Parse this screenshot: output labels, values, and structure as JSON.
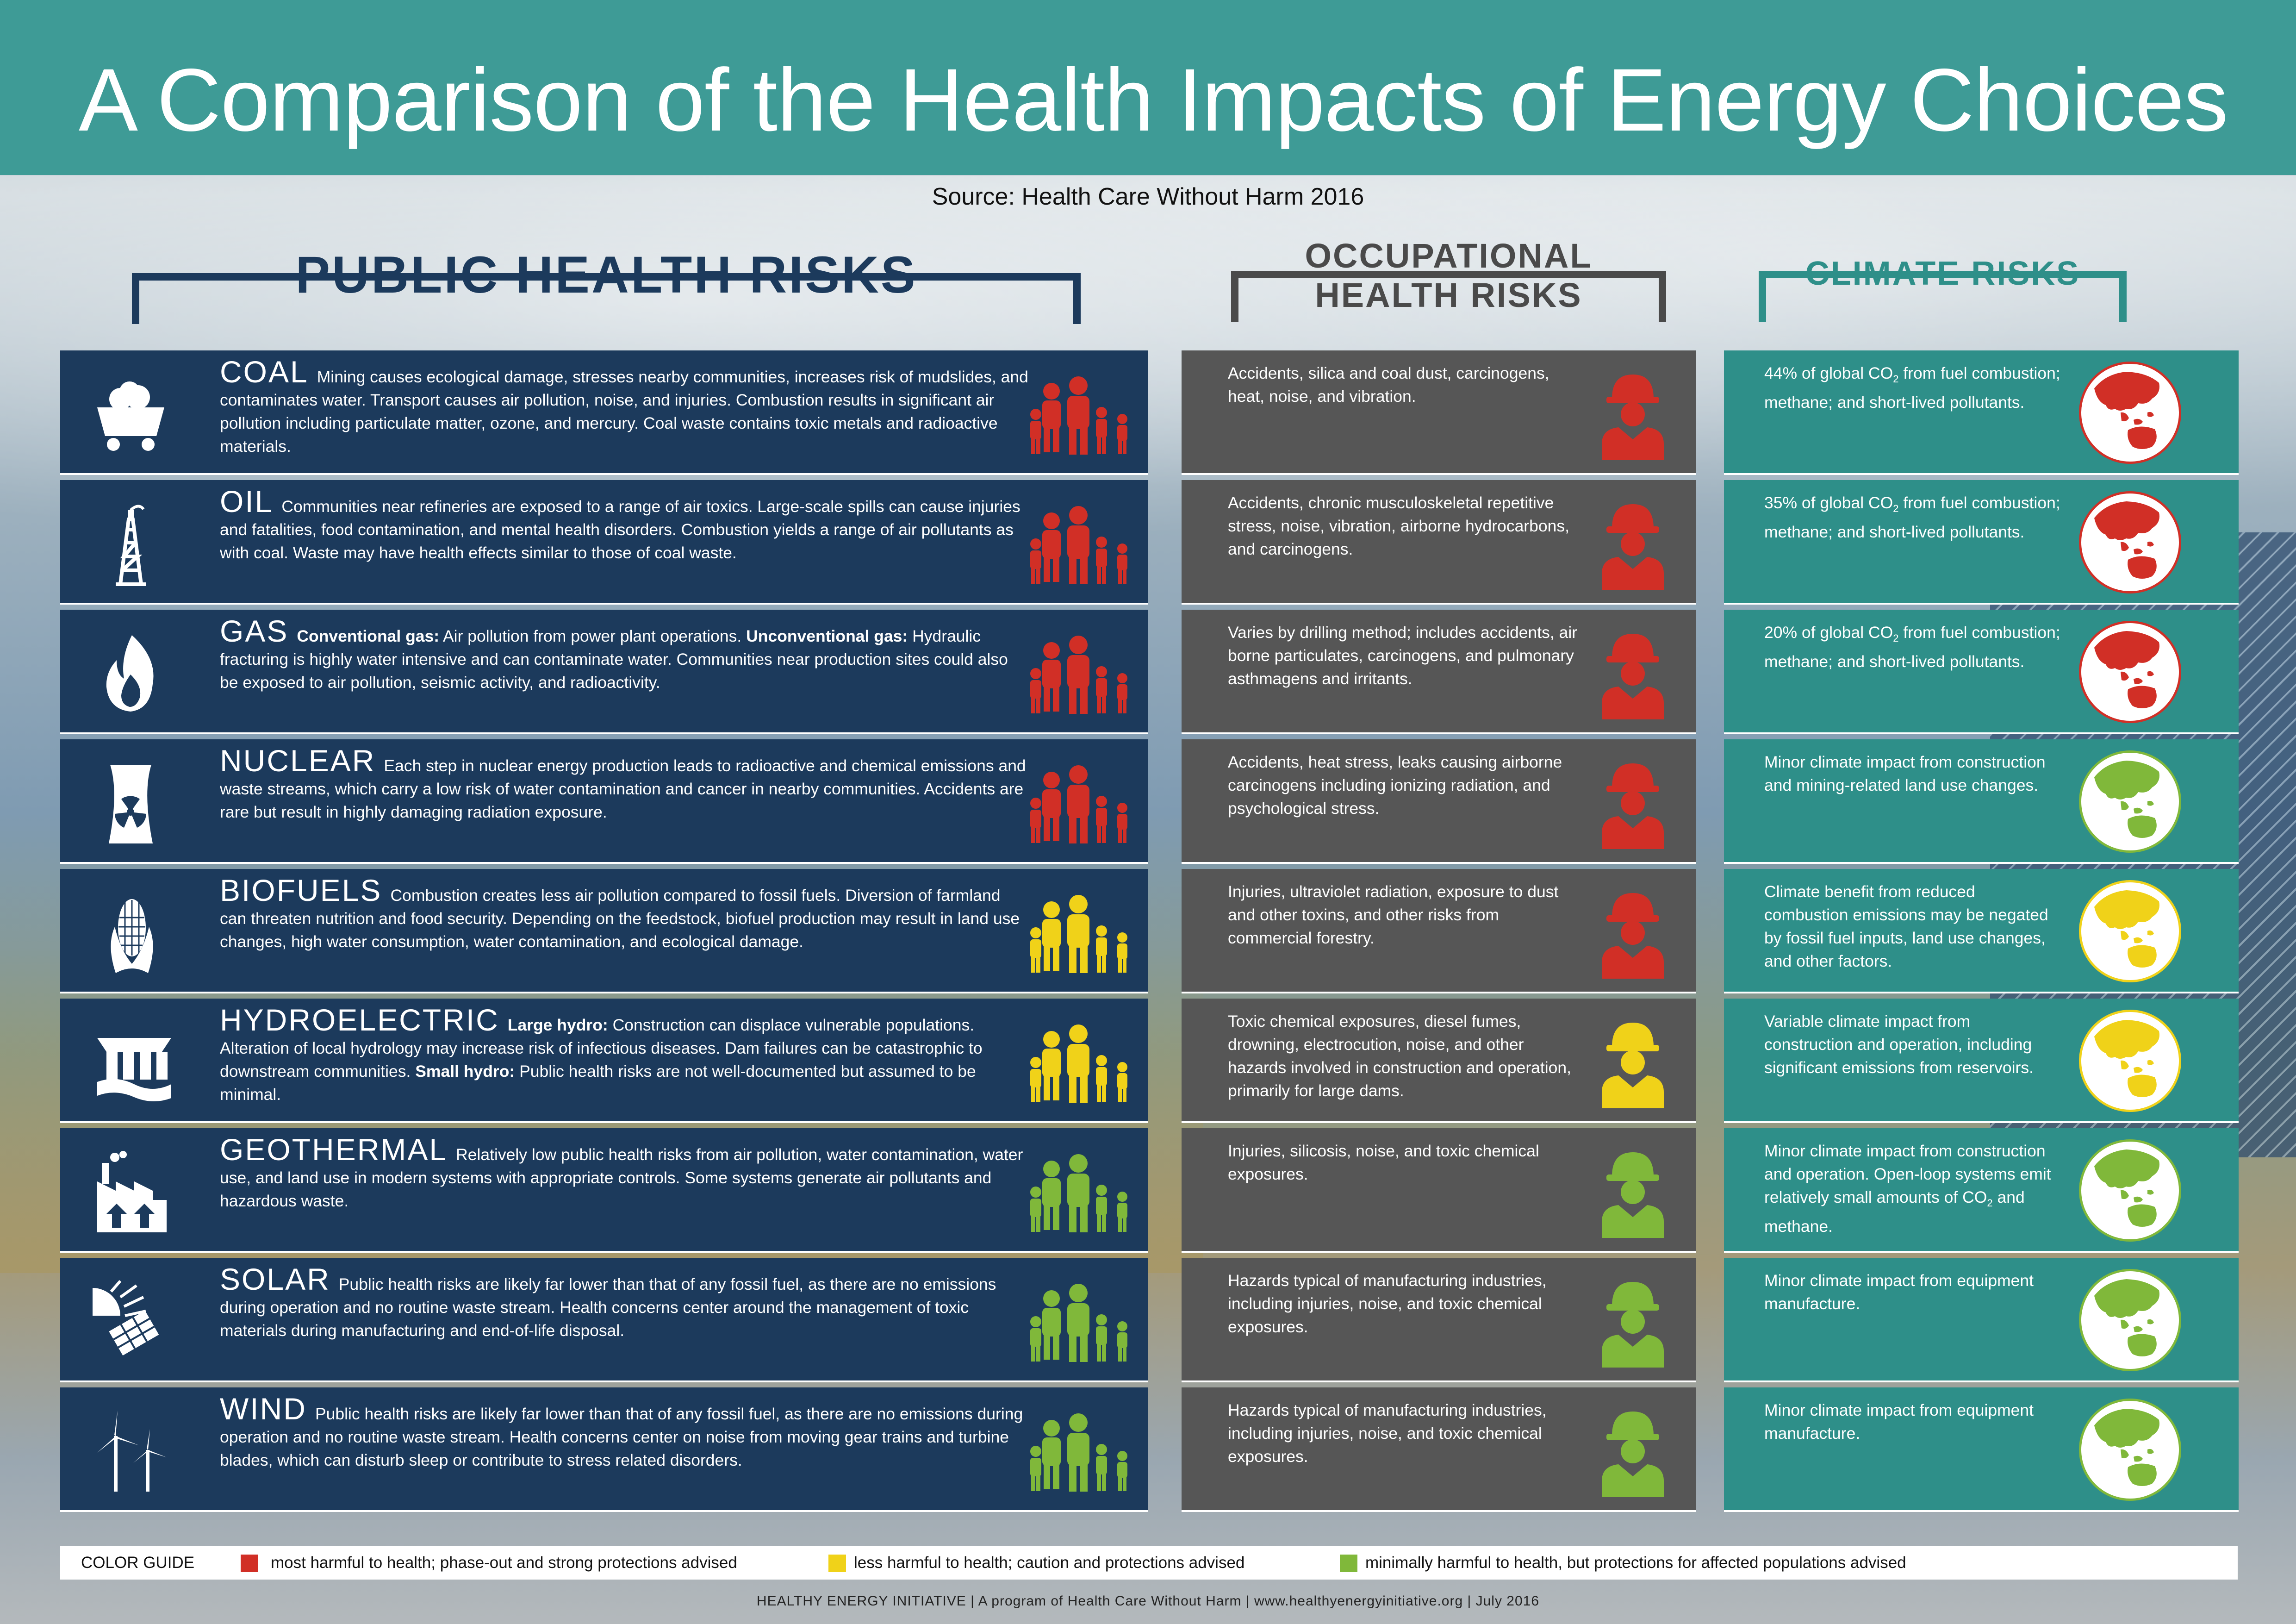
{
  "title": "A Comparison of the Health Impacts of Energy Choices",
  "source": "Source: Health Care Without Harm 2016",
  "headers": {
    "public": "PUBLIC HEALTH RISKS",
    "occupational_1": "OCCUPATIONAL",
    "occupational_2": "HEALTH RISKS",
    "climate": "CLIMATE RISKS"
  },
  "colors": {
    "red": "#d12f26",
    "yellow": "#f0d219",
    "green": "#80b83a",
    "public_bg": "#1c3a5c",
    "occupational_bg": "#565656",
    "climate_bg": "#2e8f89",
    "title_bg": "#3e9b96"
  },
  "rows": [
    {
      "name": "COAL",
      "icon": "coal-cart-icon",
      "public": "Mining causes ecological damage, stresses nearby communities, increases risk of mudslides, and contaminates water. Transport causes air pollution, noise, and injuries. Combustion results in significant air pollution including particulate matter, ozone, and mercury. Coal waste contains toxic metals and radioactive materials.",
      "occupational": "Accidents, silica and coal dust, carcinogens, heat, noise, and vibration.",
      "climate_pre": "44% of global CO",
      "climate_sub": "2",
      "climate_post": " from fuel combustion; methane; and short-lived pollutants.",
      "public_level": "red",
      "occupational_level": "red",
      "climate_level": "red"
    },
    {
      "name": "OIL",
      "icon": "oil-derrick-icon",
      "public": "Communities near refineries are exposed to a range of air toxics. Large-scale spills can cause injuries and fatalities, food contamination, and mental health disorders. Combustion yields a range of air pollutants as with coal. Waste may have health effects similar to those of coal waste.",
      "occupational": "Accidents, chronic musculoskeletal repetitive stress, noise, vibration, airborne hydrocarbons, and carcinogens.",
      "climate_pre": "35% of global CO",
      "climate_sub": "2",
      "climate_post": " from fuel combustion; methane; and short-lived pollutants.",
      "public_level": "red",
      "occupational_level": "red",
      "climate_level": "red"
    },
    {
      "name": "GAS",
      "icon": "gas-flame-icon",
      "public_b1": "Conventional gas:",
      "public_t1": " Air pollution from power plant operations. ",
      "public_b2": "Unconventional gas:",
      "public_t2": " Hydraulic fracturing is highly water intensive and can contaminate water. Communities near production sites could also be exposed to air pollution, seismic activity, and radioactivity.",
      "occupational": "Varies by drilling method; includes accidents, air borne particulates, carcinogens, and pulmonary asthmagens and irritants.",
      "climate_pre": "20% of global CO",
      "climate_sub": "2",
      "climate_post": " from fuel combustion; methane; and short-lived pollutants.",
      "public_level": "red",
      "occupational_level": "red",
      "climate_level": "red"
    },
    {
      "name": "NUCLEAR",
      "icon": "nuclear-cooling-tower-icon",
      "public": "Each step in nuclear energy production leads to radioactive and chemical emissions and waste streams, which carry a low risk of water contamination and cancer in nearby communities. Accidents are rare but result in highly damaging radiation exposure.",
      "occupational": "Accidents, heat stress, leaks causing airborne carcinogens including ionizing radiation, and psychological stress.",
      "climate_pre": "Minor climate impact from construction and mining-related land use changes.",
      "climate_sub": "",
      "climate_post": "",
      "public_level": "red",
      "occupational_level": "red",
      "climate_level": "green"
    },
    {
      "name": "BIOFUELS",
      "icon": "corn-icon",
      "public": "Combustion creates less air pollution compared to fossil fuels. Diversion of farmland can threaten nutrition and food security. Depending on the feedstock, biofuel production may result in land use changes, high water consumption, water contamination, and ecological damage.",
      "occupational": "Injuries, ultraviolet radiation, exposure to dust and other toxins, and other risks from commercial forestry.",
      "climate_pre": "Climate benefit from reduced combustion emissions may be negated by fossil fuel inputs, land use changes, and other factors.",
      "climate_sub": "",
      "climate_post": "",
      "public_level": "yellow",
      "occupational_level": "red",
      "climate_level": "yellow"
    },
    {
      "name": "HYDROELECTRIC",
      "icon": "dam-icon",
      "public_b1": "Large hydro:",
      "public_t1": " Construction can displace vulnerable populations. Alteration of local hydrology may increase risk of infectious diseases.  Dam failures can be catastrophic to downstream communities. ",
      "public_b2": "Small hydro:",
      "public_t2": " Public health risks are not well-documented but assumed to be minimal.",
      "occupational": "Toxic chemical exposures, diesel fumes, drowning, electrocution, noise, and other hazards involved in construction and operation, primarily for large dams.",
      "climate_pre": "Variable climate impact from construction and operation, including significant emissions from reservoirs.",
      "climate_sub": "",
      "climate_post": "",
      "public_level": "yellow",
      "occupational_level": "yellow",
      "climate_level": "yellow"
    },
    {
      "name": "GEOTHERMAL",
      "icon": "geothermal-plant-icon",
      "public": "Relatively low public health risks from air pollution, water contamination, water use, and land use in modern systems with appropriate controls. Some systems generate air pollutants and hazardous waste.",
      "occupational": "Injuries, silicosis, noise, and toxic chemical exposures.",
      "climate_pre": "Minor climate impact from construction and operation. Open-loop systems emit relatively small amounts of CO",
      "climate_sub": "2",
      "climate_post": " and methane.",
      "public_level": "green",
      "occupational_level": "green",
      "climate_level": "green"
    },
    {
      "name": "SOLAR",
      "icon": "solar-panel-icon",
      "public": "Public health risks are likely far lower than that of any fossil fuel, as there are no emissions during operation and no routine waste stream. Health concerns center around the management of toxic materials during manufacturing and end-of-life disposal.",
      "occupational": "Hazards typical of manufacturing industries, including injuries, noise, and toxic chemical exposures.",
      "climate_pre": "Minor climate impact from equipment manufacture.",
      "climate_sub": "",
      "climate_post": "",
      "public_level": "green",
      "occupational_level": "green",
      "climate_level": "green"
    },
    {
      "name": "WIND",
      "icon": "wind-turbine-icon",
      "public": "Public health risks are likely far lower than that of any fossil fuel, as there are no emissions during operation and no routine waste stream. Health concerns center on noise from moving gear trains and turbine blades, which can disturb sleep or contribute to stress related disorders.",
      "occupational": "Hazards typical of manufacturing industries, including injuries, noise, and toxic chemical exposures.",
      "climate_pre": "Minor climate impact from equipment manufacture.",
      "climate_sub": "",
      "climate_post": "",
      "public_level": "green",
      "occupational_level": "green",
      "climate_level": "green"
    }
  ],
  "color_guide": {
    "label": "COLOR GUIDE",
    "red": "most harmful to health; phase-out and strong protections advised",
    "yellow": "less harmful to health; caution and protections advised",
    "green": "minimally harmful to health, but protections for affected populations advised"
  },
  "footer": "HEALTHY ENERGY INITIATIVE | A program of Health Care Without Harm | www.healthyenergyinitiative.org | July 2016"
}
